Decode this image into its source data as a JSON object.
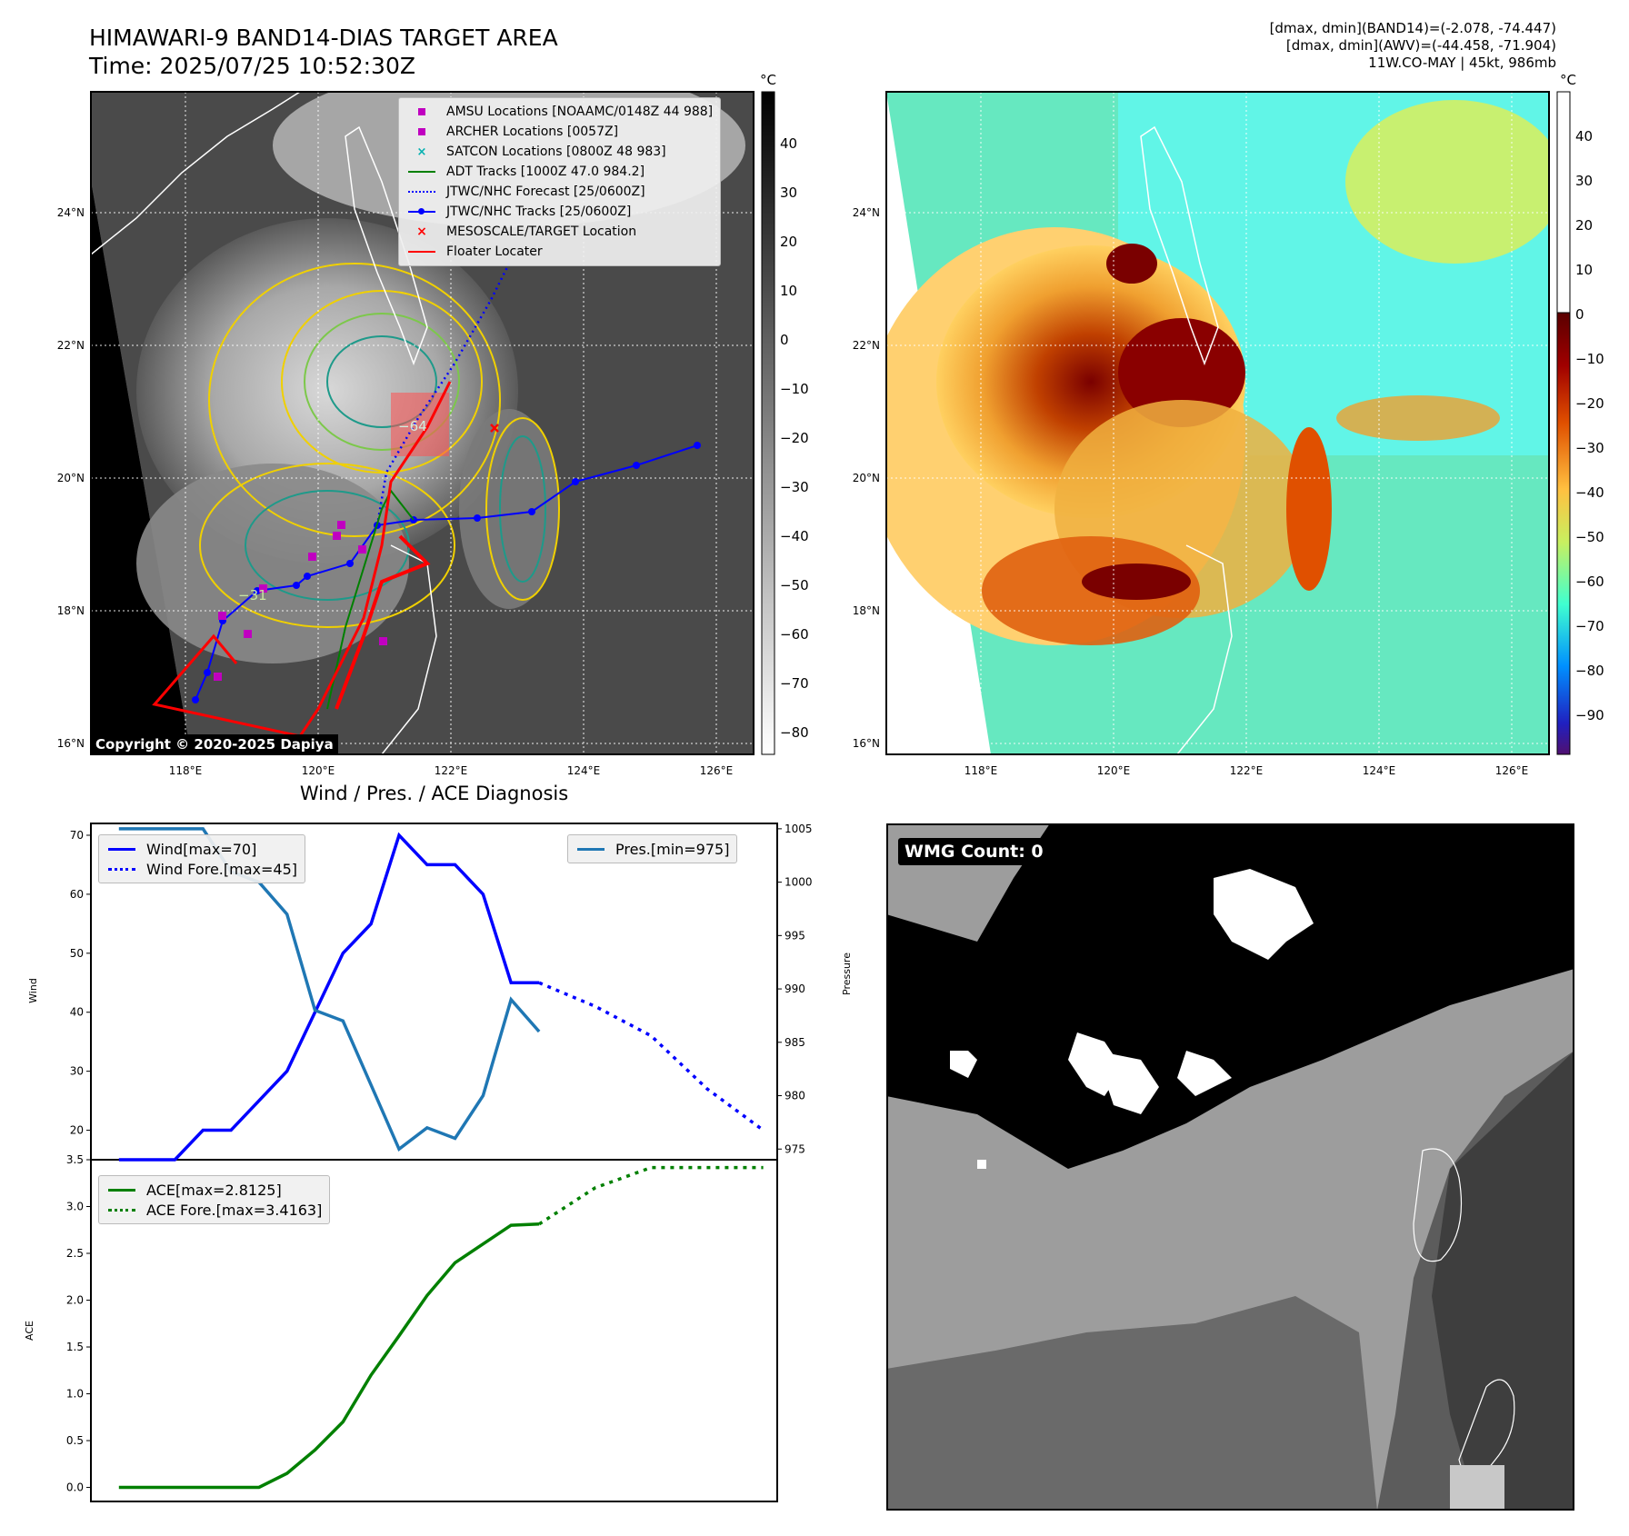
{
  "header": {
    "title_line1": "HIMAWARI-9 BAND14-DIAS TARGET AREA",
    "title_line2": "Time: 2025/07/25 10:52:30Z",
    "diag_line1": "[dmax, dmin](BAND14)=(-2.078, -74.447)",
    "diag_line2": "[dmax, dmin](AWV)=(-44.458, -71.904)",
    "diag_line3": "11W.CO-MAY | 45kt, 986mb"
  },
  "maps": {
    "lat_ticks": [
      "24°N",
      "22°N",
      "20°N",
      "18°N",
      "16°N"
    ],
    "lon_ticks": [
      "118°E",
      "120°E",
      "122°E",
      "124°E",
      "126°E"
    ],
    "unit": "°C",
    "left_colorbar_ticks": [
      "40",
      "30",
      "20",
      "10",
      "0",
      "−10",
      "−20",
      "−30",
      "−40",
      "−50",
      "−60",
      "−70",
      "−80"
    ],
    "right_colorbar_ticks": [
      "40",
      "30",
      "20",
      "10",
      "0",
      "−10",
      "−20",
      "−30",
      "−40",
      "−50",
      "−60",
      "−70",
      "−80",
      "−90"
    ],
    "copyright": "Copyright © 2020-2025 Dapiya",
    "contour_labels": [
      "−64",
      "−31",
      "−31",
      "−64",
      "−31"
    ],
    "legend": [
      {
        "label": "AMSU Locations [NOAAMC/0148Z 44 988]",
        "color": "#c000c0",
        "symbol": "square"
      },
      {
        "label": "ARCHER Locations [0057Z]",
        "color": "#c000c0",
        "symbol": "square"
      },
      {
        "label": "SATCON Locations [0800Z 48 983]",
        "color": "#00b0b0",
        "symbol": "x"
      },
      {
        "label": "ADT Tracks [1000Z 47.0 984.2]",
        "color": "#008000",
        "symbol": "line"
      },
      {
        "label": "JTWC/NHC Forecast [25/0600Z]",
        "color": "#0000ff",
        "symbol": "dotted"
      },
      {
        "label": "JTWC/NHC Tracks [25/0600Z]",
        "color": "#0000ff",
        "symbol": "line-dot"
      },
      {
        "label": "MESOSCALE/TARGET Location",
        "color": "#ff0000",
        "symbol": "x"
      },
      {
        "label": "Floater Locater",
        "color": "#ff0000",
        "symbol": "line"
      }
    ]
  },
  "diagnosis": {
    "title": "Wind / Pres. / ACE Diagnosis",
    "wind_ylabel": "Wind",
    "pres_ylabel": "Pressure",
    "ace_ylabel": "ACE",
    "legend_wind": "Wind[max=70]",
    "legend_wind_fore": "Wind Fore.[max=45]",
    "legend_pres": "Pres.[min=975]",
    "legend_ace": "ACE[max=2.8125]",
    "legend_ace_fore": "ACE Fore.[max=3.4163]",
    "wmg": "WMG Count: 0"
  },
  "chart_data": [
    {
      "type": "line",
      "ylabel": "Wind",
      "ylim": [
        15,
        72
      ],
      "y2label": "Pressure",
      "y2lim": [
        974,
        1005.5
      ],
      "yticks": [
        20,
        30,
        40,
        50,
        60,
        70
      ],
      "y2ticks": [
        975,
        980,
        985,
        990,
        995,
        1000,
        1005
      ],
      "xlim": [
        -1,
        23.5
      ],
      "series": [
        {
          "name": "Wind[max=70]",
          "color": "#0000ff",
          "style": "solid",
          "x": [
            0,
            2,
            3,
            4,
            5,
            6,
            7,
            8,
            9,
            10,
            11,
            12,
            13,
            14,
            15
          ],
          "y": [
            15,
            15,
            20,
            20,
            25,
            30,
            40,
            50,
            55,
            70,
            65,
            65,
            60,
            45,
            45
          ]
        },
        {
          "name": "Wind Fore.[max=45]",
          "color": "#0000ff",
          "style": "dotted",
          "x": [
            15,
            17,
            19,
            21,
            23
          ],
          "y": [
            45,
            41,
            36,
            27,
            20
          ]
        },
        {
          "name": "Pres.[min=975]",
          "color": "#1f77b4",
          "style": "solid",
          "axis": "right",
          "x": [
            0,
            1,
            2,
            3,
            4,
            5,
            6,
            7,
            8,
            9,
            10,
            11,
            12,
            13,
            14,
            15
          ],
          "y": [
            1005,
            1005,
            1005,
            1005,
            1001,
            1000,
            997,
            988,
            987,
            981,
            975,
            977,
            976,
            980,
            989,
            986
          ]
        }
      ]
    },
    {
      "type": "line",
      "ylabel": "ACE",
      "ylim": [
        -0.15,
        3.5
      ],
      "yticks": [
        0.0,
        0.5,
        1.0,
        1.5,
        2.0,
        2.5,
        3.0,
        3.5
      ],
      "xlim": [
        -1,
        23.5
      ],
      "series": [
        {
          "name": "ACE[max=2.8125]",
          "color": "#008000",
          "style": "solid",
          "x": [
            0,
            1,
            2,
            3,
            4,
            5,
            6,
            7,
            8,
            9,
            10,
            11,
            12,
            13,
            14,
            15
          ],
          "y": [
            0,
            0,
            0,
            0,
            0,
            0,
            0.15,
            0.4,
            0.7,
            1.2,
            1.62,
            2.05,
            2.4,
            2.6,
            2.8,
            2.8125
          ]
        },
        {
          "name": "ACE Fore.[max=3.4163]",
          "color": "#008000",
          "style": "dotted",
          "x": [
            15,
            17,
            19,
            21,
            23
          ],
          "y": [
            2.8125,
            3.2,
            3.4163,
            3.4163,
            3.4163
          ]
        }
      ]
    }
  ]
}
